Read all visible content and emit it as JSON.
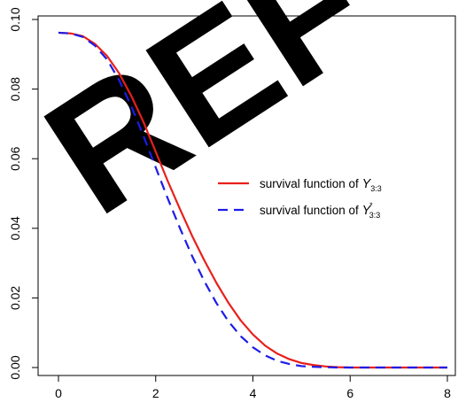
{
  "chart_data": {
    "type": "line",
    "title": "",
    "xlabel": "",
    "ylabel": "",
    "xlim": [
      0,
      8
    ],
    "ylim": [
      0,
      0.1
    ],
    "x_ticks": [
      0,
      2,
      4,
      6,
      8
    ],
    "x_tick_labels": [
      "0",
      "2",
      "4",
      "6",
      "8"
    ],
    "y_ticks": [
      0.0,
      0.02,
      0.04,
      0.06,
      0.08,
      0.1
    ],
    "y_tick_labels": [
      "0.00",
      "0.02",
      "0.04",
      "0.06",
      "0.08",
      "0.10"
    ],
    "grid": false,
    "legend_position": "right",
    "x": [
      0,
      0.25,
      0.5,
      0.75,
      1.0,
      1.25,
      1.5,
      1.75,
      2.0,
      2.25,
      2.5,
      2.75,
      3.0,
      3.25,
      3.5,
      3.75,
      4.0,
      4.25,
      4.5,
      4.75,
      5.0,
      5.25,
      5.5,
      5.75,
      6.0,
      6.5,
      7.0,
      7.5,
      8.0
    ],
    "series": [
      {
        "name_parts": {
          "prefix": "survival function of ",
          "var": "Y",
          "sub": "3:3",
          "sup": ""
        },
        "color": "#e8201c",
        "dash": "solid",
        "values": [
          0.0962,
          0.096,
          0.0952,
          0.093,
          0.0895,
          0.0845,
          0.078,
          0.0705,
          0.062,
          0.0535,
          0.0455,
          0.0378,
          0.0308,
          0.0243,
          0.0185,
          0.0135,
          0.0095,
          0.0063,
          0.004,
          0.0024,
          0.0013,
          0.0007,
          0.0003,
          0.0001,
          0.0,
          0.0,
          0.0,
          0.0,
          0.0
        ]
      },
      {
        "name_parts": {
          "prefix": "survival function of ",
          "var": "Y",
          "sub": "3:3",
          "sup": "*"
        },
        "color": "#1c1ce8",
        "dash": "dashed",
        "values": [
          0.0962,
          0.096,
          0.095,
          0.0925,
          0.0885,
          0.0825,
          0.075,
          0.0665,
          0.0575,
          0.0485,
          0.04,
          0.032,
          0.0248,
          0.0185,
          0.0132,
          0.009,
          0.0058,
          0.0035,
          0.0019,
          0.001,
          0.0004,
          0.0002,
          0.0001,
          0.0,
          0.0,
          0.0,
          0.0,
          0.0,
          0.0
        ]
      }
    ]
  },
  "watermark": {
    "text": "REF",
    "color": "#a9dcf4"
  }
}
